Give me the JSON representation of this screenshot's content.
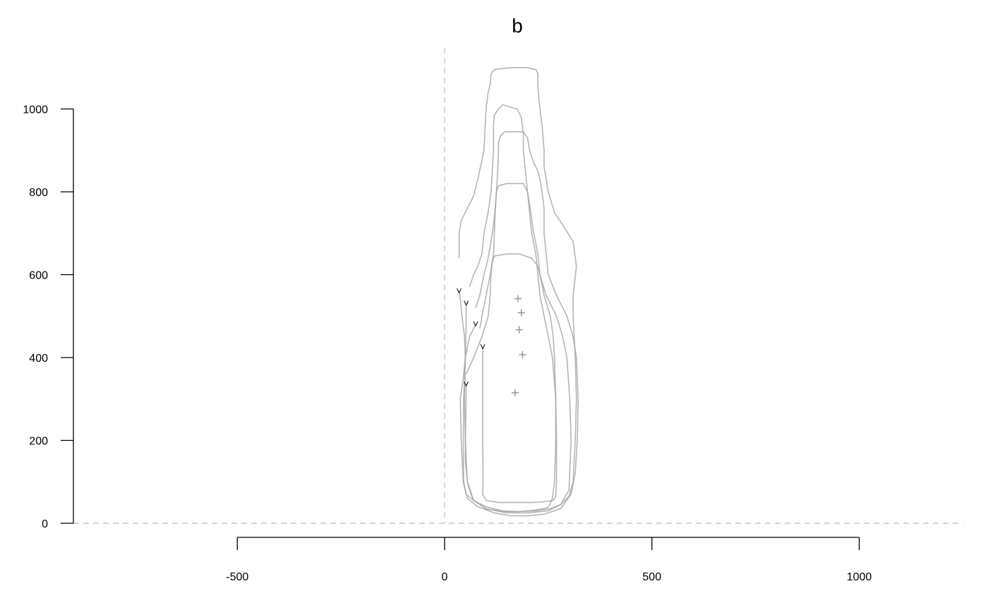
{
  "chart_data": {
    "type": "line",
    "title": "b",
    "xlabel": "",
    "ylabel": "",
    "xlim": [
      -900,
      1250
    ],
    "ylim": [
      0,
      1000
    ],
    "x_ticks": [
      -500,
      0,
      500,
      1000
    ],
    "y_ticks": [
      0,
      200,
      400,
      600,
      800,
      1000
    ],
    "x_tick_labels": [
      "-500",
      "0",
      "500",
      "1000"
    ],
    "y_tick_labels": [
      "0",
      "200",
      "400",
      "600",
      "800",
      "1000"
    ],
    "reference_lines": {
      "x": 0,
      "y": 0
    },
    "series": [
      {
        "points": [
          [
            35,
            560
          ],
          [
            38,
            540
          ],
          [
            42,
            500
          ],
          [
            48,
            450
          ],
          [
            50,
            400
          ],
          [
            48,
            350
          ],
          [
            46,
            300
          ],
          [
            45,
            200
          ],
          [
            46,
            100
          ],
          [
            52,
            70
          ],
          [
            70,
            55
          ],
          [
            100,
            40
          ],
          [
            140,
            30
          ],
          [
            180,
            28
          ],
          [
            220,
            30
          ],
          [
            255,
            35
          ],
          [
            280,
            45
          ],
          [
            300,
            65
          ],
          [
            310,
            100
          ],
          [
            315,
            200
          ],
          [
            318,
            300
          ],
          [
            315,
            400
          ],
          [
            310,
            500
          ],
          [
            310,
            550
          ],
          [
            318,
            620
          ],
          [
            310,
            680
          ],
          [
            285,
            720
          ],
          [
            265,
            750
          ],
          [
            250,
            800
          ],
          [
            240,
            860
          ],
          [
            240,
            900
          ],
          [
            235,
            960
          ],
          [
            230,
            1000
          ],
          [
            225,
            1050
          ],
          [
            225,
            1085
          ],
          [
            220,
            1095
          ],
          [
            200,
            1100
          ],
          [
            160,
            1100
          ],
          [
            120,
            1095
          ],
          [
            112,
            1085
          ],
          [
            110,
            1060
          ],
          [
            105,
            1040
          ],
          [
            100,
            1000
          ],
          [
            98,
            960
          ],
          [
            95,
            900
          ],
          [
            80,
            830
          ],
          [
            70,
            790
          ],
          [
            55,
            760
          ],
          [
            40,
            730
          ],
          [
            35,
            700
          ],
          [
            35,
            640
          ]
        ]
      },
      {
        "points": [
          [
            52,
            530
          ],
          [
            52,
            480
          ],
          [
            50,
            400
          ],
          [
            48,
            300
          ],
          [
            50,
            200
          ],
          [
            55,
            100
          ],
          [
            70,
            55
          ],
          [
            100,
            35
          ],
          [
            150,
            25
          ],
          [
            200,
            25
          ],
          [
            250,
            30
          ],
          [
            280,
            45
          ],
          [
            300,
            80
          ],
          [
            305,
            200
          ],
          [
            302,
            300
          ],
          [
            295,
            400
          ],
          [
            285,
            450
          ],
          [
            270,
            500
          ],
          [
            245,
            550
          ],
          [
            230,
            600
          ],
          [
            225,
            650
          ],
          [
            215,
            700
          ],
          [
            208,
            750
          ],
          [
            200,
            800
          ],
          [
            195,
            850
          ],
          [
            190,
            900
          ],
          [
            190,
            940
          ],
          [
            185,
            980
          ],
          [
            175,
            1000
          ],
          [
            140,
            1010
          ],
          [
            130,
            1000
          ],
          [
            120,
            985
          ],
          [
            118,
            960
          ],
          [
            118,
            900
          ],
          [
            115,
            850
          ],
          [
            112,
            800
          ],
          [
            105,
            750
          ],
          [
            95,
            700
          ],
          [
            90,
            650
          ],
          [
            80,
            620
          ],
          [
            70,
            600
          ],
          [
            60,
            570
          ]
        ]
      },
      {
        "points": [
          [
            75,
            480
          ],
          [
            60,
            450
          ],
          [
            50,
            400
          ],
          [
            45,
            350
          ],
          [
            38,
            300
          ],
          [
            40,
            200
          ],
          [
            45,
            100
          ],
          [
            55,
            60
          ],
          [
            80,
            40
          ],
          [
            120,
            25
          ],
          [
            160,
            18
          ],
          [
            200,
            18
          ],
          [
            240,
            22
          ],
          [
            280,
            35
          ],
          [
            305,
            70
          ],
          [
            315,
            120
          ],
          [
            320,
            200
          ],
          [
            322,
            300
          ],
          [
            318,
            400
          ],
          [
            310,
            450
          ],
          [
            295,
            500
          ],
          [
            270,
            550
          ],
          [
            250,
            600
          ],
          [
            245,
            650
          ],
          [
            240,
            700
          ],
          [
            240,
            760
          ],
          [
            235,
            800
          ],
          [
            230,
            830
          ],
          [
            225,
            850
          ],
          [
            215,
            870
          ],
          [
            205,
            900
          ],
          [
            200,
            930
          ],
          [
            190,
            945
          ],
          [
            170,
            945
          ],
          [
            145,
            945
          ],
          [
            135,
            935
          ],
          [
            130,
            920
          ],
          [
            130,
            900
          ],
          [
            128,
            850
          ],
          [
            125,
            800
          ],
          [
            122,
            760
          ],
          [
            118,
            720
          ],
          [
            112,
            680
          ],
          [
            105,
            640
          ],
          [
            95,
            600
          ],
          [
            85,
            550
          ],
          [
            75,
            520
          ]
        ]
      },
      {
        "points": [
          [
            92,
            425
          ],
          [
            92,
            400
          ],
          [
            92,
            300
          ],
          [
            92,
            200
          ],
          [
            93,
            100
          ],
          [
            92,
            70
          ],
          [
            100,
            55
          ],
          [
            130,
            50
          ],
          [
            170,
            50
          ],
          [
            210,
            50
          ],
          [
            240,
            52
          ],
          [
            262,
            55
          ],
          [
            268,
            65
          ],
          [
            270,
            100
          ],
          [
            270,
            200
          ],
          [
            268,
            300
          ],
          [
            260,
            400
          ],
          [
            250,
            450
          ],
          [
            240,
            500
          ],
          [
            230,
            550
          ],
          [
            225,
            600
          ],
          [
            220,
            650
          ],
          [
            210,
            700
          ],
          [
            205,
            750
          ],
          [
            200,
            800
          ],
          [
            190,
            820
          ],
          [
            170,
            820
          ],
          [
            150,
            820
          ],
          [
            130,
            815
          ],
          [
            125,
            800
          ],
          [
            122,
            750
          ],
          [
            120,
            700
          ],
          [
            118,
            650
          ],
          [
            110,
            600
          ],
          [
            100,
            550
          ],
          [
            90,
            500
          ],
          [
            85,
            470
          ]
        ]
      },
      {
        "points": [
          [
            52,
            335
          ],
          [
            52,
            300
          ],
          [
            50,
            200
          ],
          [
            50,
            150
          ],
          [
            55,
            100
          ],
          [
            60,
            80
          ],
          [
            70,
            55
          ],
          [
            100,
            35
          ],
          [
            140,
            28
          ],
          [
            180,
            28
          ],
          [
            220,
            32
          ],
          [
            250,
            38
          ],
          [
            260,
            60
          ],
          [
            265,
            100
          ],
          [
            268,
            200
          ],
          [
            268,
            300
          ],
          [
            265,
            400
          ],
          [
            262,
            450
          ],
          [
            255,
            500
          ],
          [
            240,
            550
          ],
          [
            230,
            600
          ],
          [
            225,
            620
          ],
          [
            210,
            640
          ],
          [
            180,
            650
          ],
          [
            150,
            650
          ],
          [
            120,
            645
          ],
          [
            115,
            630
          ],
          [
            112,
            600
          ],
          [
            110,
            550
          ],
          [
            105,
            500
          ],
          [
            90,
            450
          ],
          [
            70,
            400
          ],
          [
            52,
            360
          ]
        ]
      }
    ],
    "start_markers": [
      [
        35,
        560
      ],
      [
        52,
        530
      ],
      [
        75,
        480
      ],
      [
        92,
        425
      ],
      [
        52,
        335
      ]
    ],
    "centroids": [
      [
        177,
        542
      ],
      [
        185,
        508
      ],
      [
        180,
        467
      ],
      [
        188,
        407
      ],
      [
        170,
        315
      ]
    ]
  }
}
